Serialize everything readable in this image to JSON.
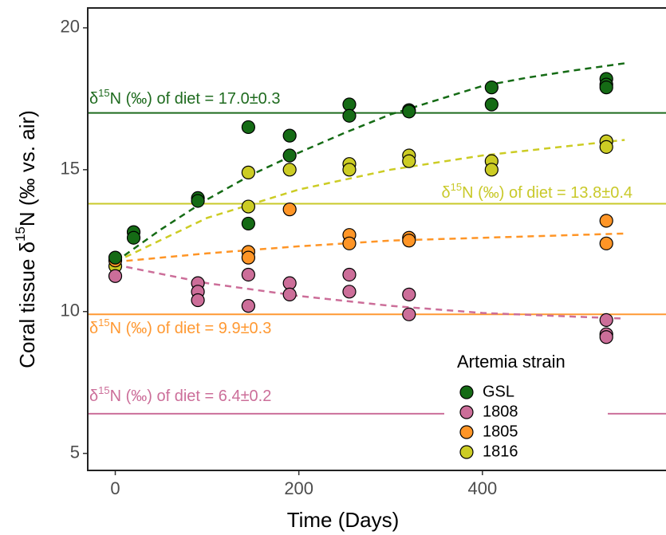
{
  "chart_data": {
    "type": "scatter",
    "x_label": "Time (Days)",
    "y_label": {
      "pre": "Coral tissue δ",
      "sup": "15",
      "post": "N (‰ vs. air)"
    },
    "xlim": [
      -30,
      600
    ],
    "ylim": [
      4.4,
      20.7
    ],
    "xticks": [
      0,
      200,
      400
    ],
    "yticks": [
      5,
      10,
      15,
      20
    ],
    "legend_title": "Artemia strain",
    "legend_position": "bottom-right",
    "series": [
      {
        "name": "GSL",
        "color": "#156b15",
        "x": [
          0,
          20,
          20,
          90,
          90,
          145,
          145,
          190,
          190,
          255,
          255,
          320,
          320,
          410,
          410,
          535,
          535,
          535
        ],
        "y": [
          11.9,
          12.8,
          12.6,
          14.0,
          13.9,
          16.5,
          13.1,
          16.2,
          15.5,
          17.3,
          16.9,
          17.1,
          17.05,
          17.9,
          17.3,
          18.2,
          18.0,
          17.9
        ],
        "fit": {
          "x": [
            0,
            50,
            100,
            150,
            200,
            250,
            300,
            350,
            400,
            450,
            500,
            555
          ],
          "y": [
            11.75,
            12.9,
            13.95,
            14.85,
            15.6,
            16.3,
            16.95,
            17.45,
            17.95,
            18.25,
            18.5,
            18.75
          ]
        }
      },
      {
        "name": "1808",
        "color": "#cc6e99",
        "x": [
          0,
          90,
          90,
          90,
          145,
          145,
          190,
          190,
          255,
          255,
          320,
          320,
          535,
          535,
          535
        ],
        "y": [
          11.25,
          11.0,
          10.7,
          10.4,
          11.3,
          10.2,
          11.0,
          10.6,
          11.3,
          10.7,
          10.6,
          9.9,
          9.7,
          9.2,
          9.1
        ],
        "fit": {
          "x": [
            0,
            100,
            200,
            300,
            400,
            555
          ],
          "y": [
            11.65,
            11.0,
            10.55,
            10.2,
            9.95,
            9.75
          ]
        }
      },
      {
        "name": "1805",
        "color": "#ff9526",
        "x": [
          0,
          145,
          145,
          190,
          255,
          255,
          320,
          320,
          535,
          535
        ],
        "y": [
          11.8,
          12.1,
          11.9,
          13.6,
          12.7,
          12.4,
          12.6,
          12.5,
          13.2,
          12.4
        ],
        "fit": {
          "x": [
            0,
            100,
            200,
            300,
            400,
            555
          ],
          "y": [
            11.75,
            12.05,
            12.3,
            12.5,
            12.6,
            12.75
          ]
        }
      },
      {
        "name": "1816",
        "color": "#cccc24",
        "x": [
          0,
          145,
          145,
          190,
          255,
          255,
          320,
          320,
          410,
          410,
          535,
          535
        ],
        "y": [
          11.6,
          14.9,
          13.7,
          15.0,
          15.2,
          15.0,
          15.5,
          15.3,
          15.3,
          15.0,
          16.0,
          15.8
        ],
        "fit": {
          "x": [
            0,
            100,
            200,
            300,
            400,
            555
          ],
          "y": [
            11.75,
            13.3,
            14.3,
            15.0,
            15.5,
            16.05
          ]
        }
      }
    ],
    "hlines": [
      {
        "value": 17.0,
        "color": "#1f6b1f",
        "label": {
          "pre": "δ",
          "sup": "15",
          "post": "N (‰) of diet = 17.0±0.3"
        }
      },
      {
        "value": 13.8,
        "color": "#c9c92a",
        "label": {
          "pre": "δ",
          "sup": "15",
          "post": "N (‰) of diet = 13.8±0.4"
        }
      },
      {
        "value": 9.9,
        "color": "#ff9933",
        "label": {
          "pre": "δ",
          "sup": "15",
          "post": "N (‰) of diet = 9.9±0.3"
        }
      },
      {
        "value": 6.4,
        "color": "#cc6f9a",
        "label": {
          "pre": "δ",
          "sup": "15",
          "post": "N (‰) of diet = 6.4±0.2"
        }
      }
    ]
  }
}
